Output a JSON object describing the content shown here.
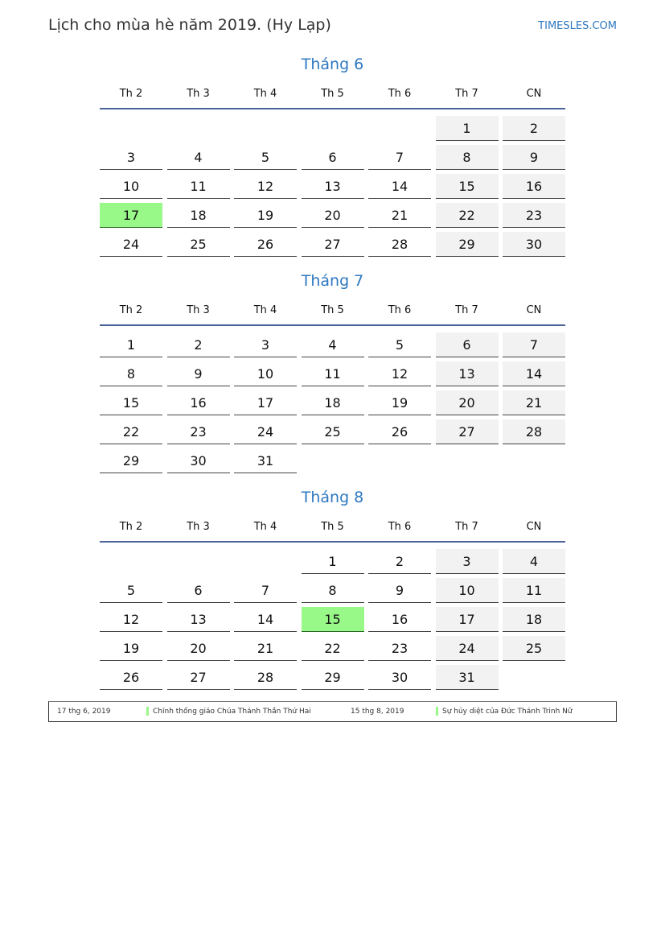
{
  "header": {
    "title": "Lịch cho mùa hè năm 2019. (Hy Lạp)",
    "site": "TIMESLES.COM"
  },
  "weekdays": [
    "Th 2",
    "Th 3",
    "Th 4",
    "Th 5",
    "Th 6",
    "Th 7",
    "CN"
  ],
  "colors": {
    "highlight": "#98f888",
    "weekend": "#f2f2f2",
    "accent": "#2e78c0"
  },
  "months": [
    {
      "title": "Tháng 6",
      "weeks": [
        [
          null,
          null,
          null,
          null,
          null,
          1,
          2
        ],
        [
          3,
          4,
          5,
          6,
          7,
          8,
          9
        ],
        [
          10,
          11,
          12,
          13,
          14,
          15,
          16
        ],
        [
          17,
          18,
          19,
          20,
          21,
          22,
          23
        ],
        [
          24,
          25,
          26,
          27,
          28,
          29,
          30
        ]
      ],
      "highlighted": [
        17
      ]
    },
    {
      "title": "Tháng 7",
      "weeks": [
        [
          1,
          2,
          3,
          4,
          5,
          6,
          7
        ],
        [
          8,
          9,
          10,
          11,
          12,
          13,
          14
        ],
        [
          15,
          16,
          17,
          18,
          19,
          20,
          21
        ],
        [
          22,
          23,
          24,
          25,
          26,
          27,
          28
        ],
        [
          29,
          30,
          31,
          null,
          null,
          null,
          null
        ]
      ],
      "highlighted": []
    },
    {
      "title": "Tháng 8",
      "weeks": [
        [
          null,
          null,
          null,
          1,
          2,
          3,
          4
        ],
        [
          5,
          6,
          7,
          8,
          9,
          10,
          11
        ],
        [
          12,
          13,
          14,
          15,
          16,
          17,
          18
        ],
        [
          19,
          20,
          21,
          22,
          23,
          24,
          25
        ],
        [
          26,
          27,
          28,
          29,
          30,
          31,
          null
        ]
      ],
      "highlighted": [
        15
      ]
    }
  ],
  "legend": [
    {
      "date": "17 thg 6, 2019",
      "name": "Chính thống giáo Chúa Thánh Thần Thứ Hai"
    },
    {
      "date": "15 thg 8, 2019",
      "name": "Sự hủy diệt của Đức Thánh Trinh Nữ"
    }
  ]
}
